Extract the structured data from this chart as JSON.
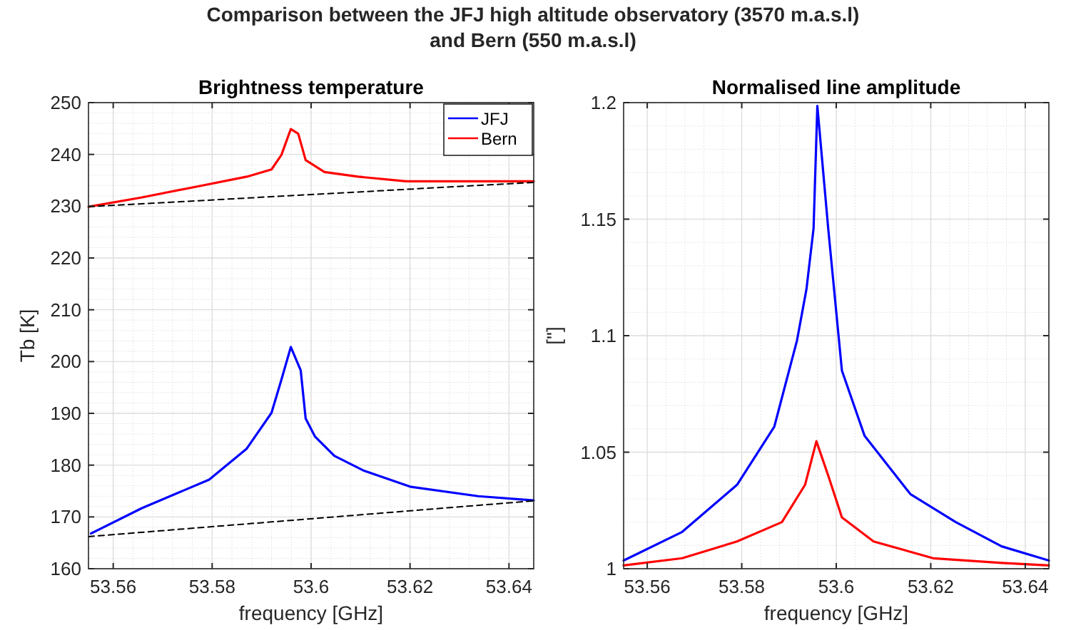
{
  "chart_data": [
    {
      "type": "line",
      "title": "Brightness temperature",
      "xlabel": "frequency [GHz]",
      "ylabel": "Tb [K]",
      "annotations": [
        "Comparison between the JFJ high altitude observatory (3570 m.a.s.l)\nand Bern (550 m.a.s.l)"
      ],
      "xlim": [
        53.555,
        53.645
      ],
      "xticks": [
        53.56,
        53.58,
        53.6,
        53.62,
        53.64
      ],
      "ylim": [
        160,
        250
      ],
      "yticks": [
        160,
        170,
        180,
        190,
        200,
        210,
        220,
        230,
        240,
        250
      ],
      "grid": true,
      "legend": "top right",
      "marker": "none",
      "series": [
        {
          "name": "JFJ",
          "color": "#0000ff",
          "x": [
            53.5555,
            53.5658,
            53.5794,
            53.587,
            53.592,
            53.594,
            53.5959,
            53.5979,
            53.5989,
            53.6008,
            53.6047,
            53.6105,
            53.6202,
            53.6338,
            53.645
          ],
          "values": [
            166.8,
            171.7,
            177.2,
            183.2,
            190.1,
            196.5,
            202.8,
            198.3,
            189,
            185.5,
            181.8,
            179,
            175.8,
            174,
            173.2
          ]
        },
        {
          "name": "Bern",
          "color": "#ff0000",
          "x": [
            53.555,
            53.5658,
            53.5775,
            53.587,
            53.592,
            53.594,
            53.5959,
            53.5974,
            53.5989,
            53.6027,
            53.6095,
            53.6192,
            53.6338,
            53.645
          ],
          "values": [
            229.9,
            231.7,
            233.9,
            235.7,
            237.1,
            239.9,
            244.9,
            244,
            238.9,
            236.6,
            235.7,
            234.8,
            234.8,
            234.8
          ]
        },
        {
          "color": "#000000",
          "line_style": "dashed",
          "x": [
            53.555,
            53.645
          ],
          "values": [
            166.2,
            173.1
          ]
        },
        {
          "color": "#000000",
          "line_style": "dashed",
          "x": [
            53.555,
            53.645
          ],
          "values": [
            229.9,
            234.6
          ]
        }
      ]
    },
    {
      "type": "line",
      "title": "Normalised line amplitude",
      "xlabel": "frequency [GHz]",
      "ylabel": "[\"]",
      "xlim": [
        53.555,
        53.645
      ],
      "xticks": [
        53.56,
        53.58,
        53.6,
        53.62,
        53.64
      ],
      "ylim": [
        1,
        1.2
      ],
      "yticks": [
        1,
        1.05,
        1.1,
        1.15,
        1.2
      ],
      "grid": true,
      "marker": "none",
      "series": [
        {
          "color": "#0000ff",
          "x": [
            53.555,
            53.5674,
            53.579,
            53.5869,
            53.5917,
            53.5937,
            53.5952,
            53.596,
            53.5983,
            53.6012,
            53.606,
            53.6157,
            53.6253,
            53.635,
            53.645
          ],
          "values": [
            1.0035,
            1.0158,
            1.036,
            1.061,
            1.098,
            1.12,
            1.146,
            1.1986,
            1.146,
            1.085,
            1.057,
            1.032,
            1.02,
            1.0096,
            1.0035
          ]
        },
        {
          "color": "#ff0000",
          "x": [
            53.555,
            53.5674,
            53.579,
            53.5885,
            53.5934,
            53.5958,
            53.5983,
            53.6012,
            53.6079,
            53.6205,
            53.635,
            53.645
          ],
          "values": [
            1.0014,
            1.0045,
            1.0117,
            1.02,
            1.036,
            1.0547,
            1.04,
            1.022,
            1.0117,
            1.0045,
            1.0025,
            1.0014
          ]
        }
      ]
    }
  ]
}
